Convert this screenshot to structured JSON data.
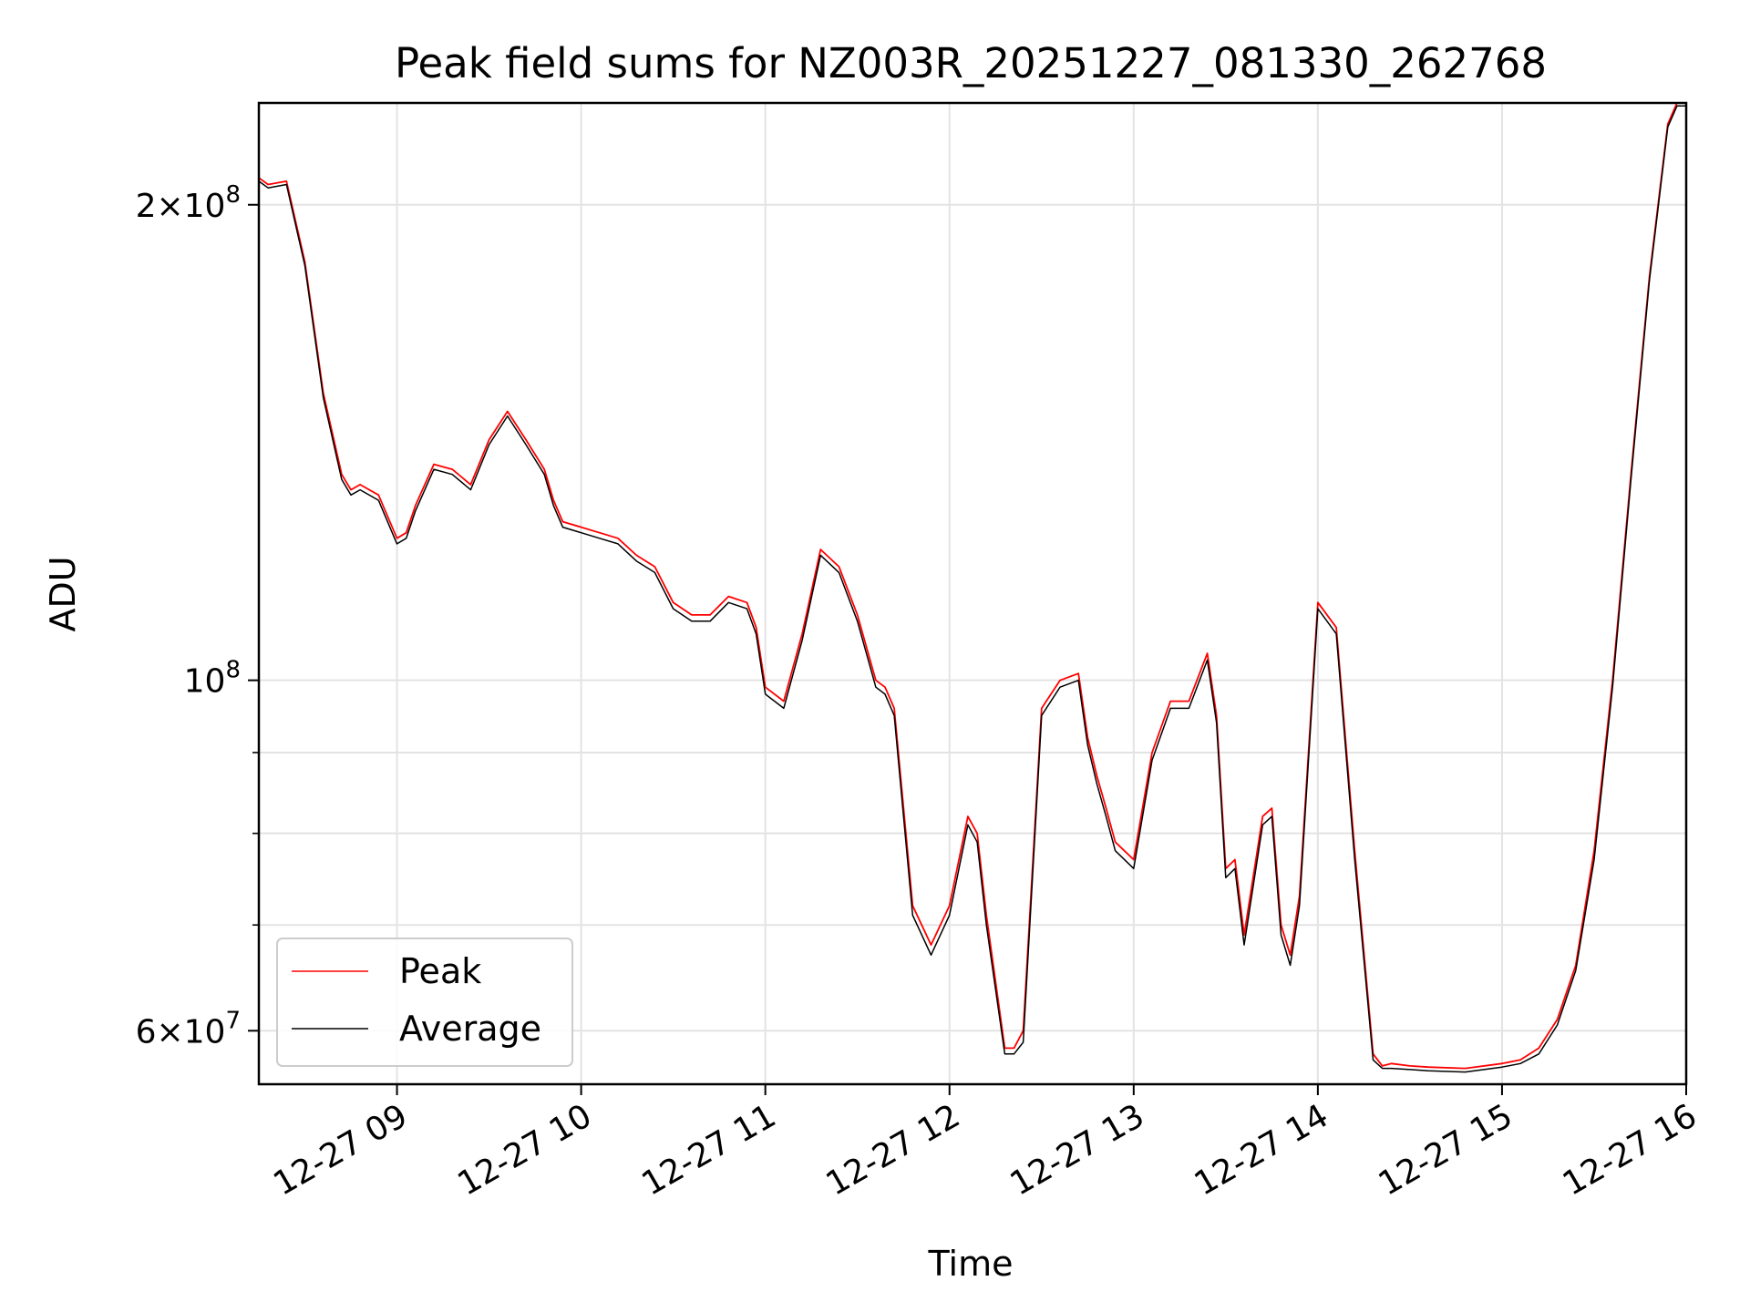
{
  "chart_data": {
    "type": "line",
    "title": "Peak field sums for NZ003R_20251227_081330_262768",
    "xlabel": "Time",
    "ylabel": "ADU",
    "yscale": "log",
    "grid": true,
    "legend_position": "lower-left",
    "x_unit": "time of day (hours) on 12-27",
    "xlim": [
      8.25,
      16.0
    ],
    "ylim": [
      55500000,
      232000000
    ],
    "x_ticks": [
      {
        "value": 9,
        "label": "12-27 09"
      },
      {
        "value": 10,
        "label": "12-27 10"
      },
      {
        "value": 11,
        "label": "12-27 11"
      },
      {
        "value": 12,
        "label": "12-27 12"
      },
      {
        "value": 13,
        "label": "12-27 13"
      },
      {
        "value": 14,
        "label": "12-27 14"
      },
      {
        "value": 15,
        "label": "12-27 15"
      },
      {
        "value": 16,
        "label": "12-27 16"
      }
    ],
    "y_major_ticks": [
      {
        "value": 60000000,
        "mantissa": "6",
        "base": "10",
        "exp": "7"
      },
      {
        "value": 100000000,
        "mantissa": "",
        "base": "10",
        "exp": "8"
      },
      {
        "value": 200000000,
        "mantissa": "2",
        "base": "10",
        "exp": "8"
      }
    ],
    "y_minor_ticks": [
      70000000,
      80000000,
      90000000
    ],
    "series": [
      {
        "name": "Peak",
        "color": "#ff0000",
        "x": [
          8.25,
          8.3,
          8.4,
          8.5,
          8.6,
          8.7,
          8.75,
          8.8,
          8.9,
          9.0,
          9.05,
          9.1,
          9.2,
          9.3,
          9.4,
          9.5,
          9.6,
          9.7,
          9.8,
          9.85,
          9.9,
          10.0,
          10.1,
          10.2,
          10.3,
          10.4,
          10.5,
          10.6,
          10.7,
          10.8,
          10.9,
          10.95,
          11.0,
          11.1,
          11.2,
          11.3,
          11.4,
          11.5,
          11.6,
          11.65,
          11.7,
          11.8,
          11.9,
          12.0,
          12.1,
          12.15,
          12.2,
          12.3,
          12.35,
          12.4,
          12.5,
          12.6,
          12.7,
          12.75,
          12.8,
          12.85,
          12.9,
          13.0,
          13.1,
          13.2,
          13.3,
          13.4,
          13.45,
          13.5,
          13.55,
          13.6,
          13.7,
          13.75,
          13.8,
          13.85,
          13.9,
          14.0,
          14.1,
          14.2,
          14.3,
          14.35,
          14.4,
          14.5,
          14.6,
          14.8,
          15.0,
          15.1,
          15.2,
          15.3,
          15.4,
          15.5,
          15.6,
          15.7,
          15.8,
          15.9,
          15.95,
          16.0
        ],
        "y": [
          208000000,
          206000000,
          207000000,
          184000000,
          152000000,
          135000000,
          132000000,
          133000000,
          131000000,
          123000000,
          124000000,
          129000000,
          137000000,
          136000000,
          133000000,
          142000000,
          148000000,
          142000000,
          136000000,
          130000000,
          126000000,
          125000000,
          124000000,
          123000000,
          120000000,
          118000000,
          112000000,
          110000000,
          110000000,
          113000000,
          112000000,
          108000000,
          99000000,
          97000000,
          107000000,
          121000000,
          118000000,
          110000000,
          100000000,
          99000000,
          96000000,
          72000000,
          68000000,
          72000000,
          82000000,
          80000000,
          71000000,
          58500000,
          58500000,
          60000000,
          96000000,
          100000000,
          101000000,
          92000000,
          87000000,
          83000000,
          79000000,
          77000000,
          90000000,
          97000000,
          97000000,
          104000000,
          95000000,
          76000000,
          77000000,
          69000000,
          82000000,
          83000000,
          70000000,
          67000000,
          73000000,
          112000000,
          108000000,
          78000000,
          58000000,
          57000000,
          57200000,
          57000000,
          56900000,
          56800000,
          57200000,
          57500000,
          58500000,
          61000000,
          66000000,
          78000000,
          100000000,
          135000000,
          180000000,
          225000000,
          232000000,
          232000000
        ]
      },
      {
        "name": "Average",
        "color": "#000000",
        "x": [
          8.25,
          8.3,
          8.4,
          8.5,
          8.6,
          8.7,
          8.75,
          8.8,
          8.9,
          9.0,
          9.05,
          9.1,
          9.2,
          9.3,
          9.4,
          9.5,
          9.6,
          9.7,
          9.8,
          9.85,
          9.9,
          10.0,
          10.1,
          10.2,
          10.3,
          10.4,
          10.5,
          10.6,
          10.7,
          10.8,
          10.9,
          10.95,
          11.0,
          11.1,
          11.2,
          11.3,
          11.4,
          11.5,
          11.6,
          11.65,
          11.7,
          11.8,
          11.9,
          12.0,
          12.1,
          12.15,
          12.2,
          12.3,
          12.35,
          12.4,
          12.5,
          12.6,
          12.7,
          12.75,
          12.8,
          12.85,
          12.9,
          13.0,
          13.1,
          13.2,
          13.3,
          13.4,
          13.45,
          13.5,
          13.55,
          13.6,
          13.7,
          13.75,
          13.8,
          13.85,
          13.9,
          14.0,
          14.1,
          14.2,
          14.3,
          14.35,
          14.4,
          14.5,
          14.6,
          14.8,
          15.0,
          15.1,
          15.2,
          15.3,
          15.4,
          15.5,
          15.6,
          15.7,
          15.8,
          15.9,
          15.95,
          16.0
        ],
        "y": [
          207000000,
          205000000,
          206000000,
          183000000,
          151000000,
          134000000,
          131000000,
          132000000,
          130000000,
          122000000,
          123000000,
          128000000,
          136000000,
          135000000,
          132000000,
          141000000,
          147000000,
          141000000,
          135000000,
          129000000,
          125000000,
          124000000,
          123000000,
          122000000,
          119000000,
          117000000,
          111000000,
          109000000,
          109000000,
          112000000,
          111000000,
          107000000,
          98000000,
          96000000,
          106000000,
          120000000,
          117000000,
          109000000,
          99000000,
          98000000,
          95000000,
          71000000,
          67000000,
          71000000,
          81000000,
          79000000,
          70000000,
          58000000,
          58000000,
          59000000,
          95000000,
          99000000,
          100000000,
          91000000,
          86000000,
          82000000,
          78000000,
          76000000,
          89000000,
          96000000,
          96000000,
          103000000,
          94000000,
          75000000,
          76000000,
          68000000,
          81000000,
          82000000,
          69000000,
          66000000,
          72000000,
          111000000,
          107000000,
          77000000,
          57500000,
          56800000,
          56800000,
          56700000,
          56600000,
          56500000,
          56900000,
          57200000,
          58000000,
          60500000,
          65500000,
          77000000,
          99000000,
          134000000,
          179000000,
          224000000,
          231000000,
          231000000
        ]
      }
    ]
  }
}
